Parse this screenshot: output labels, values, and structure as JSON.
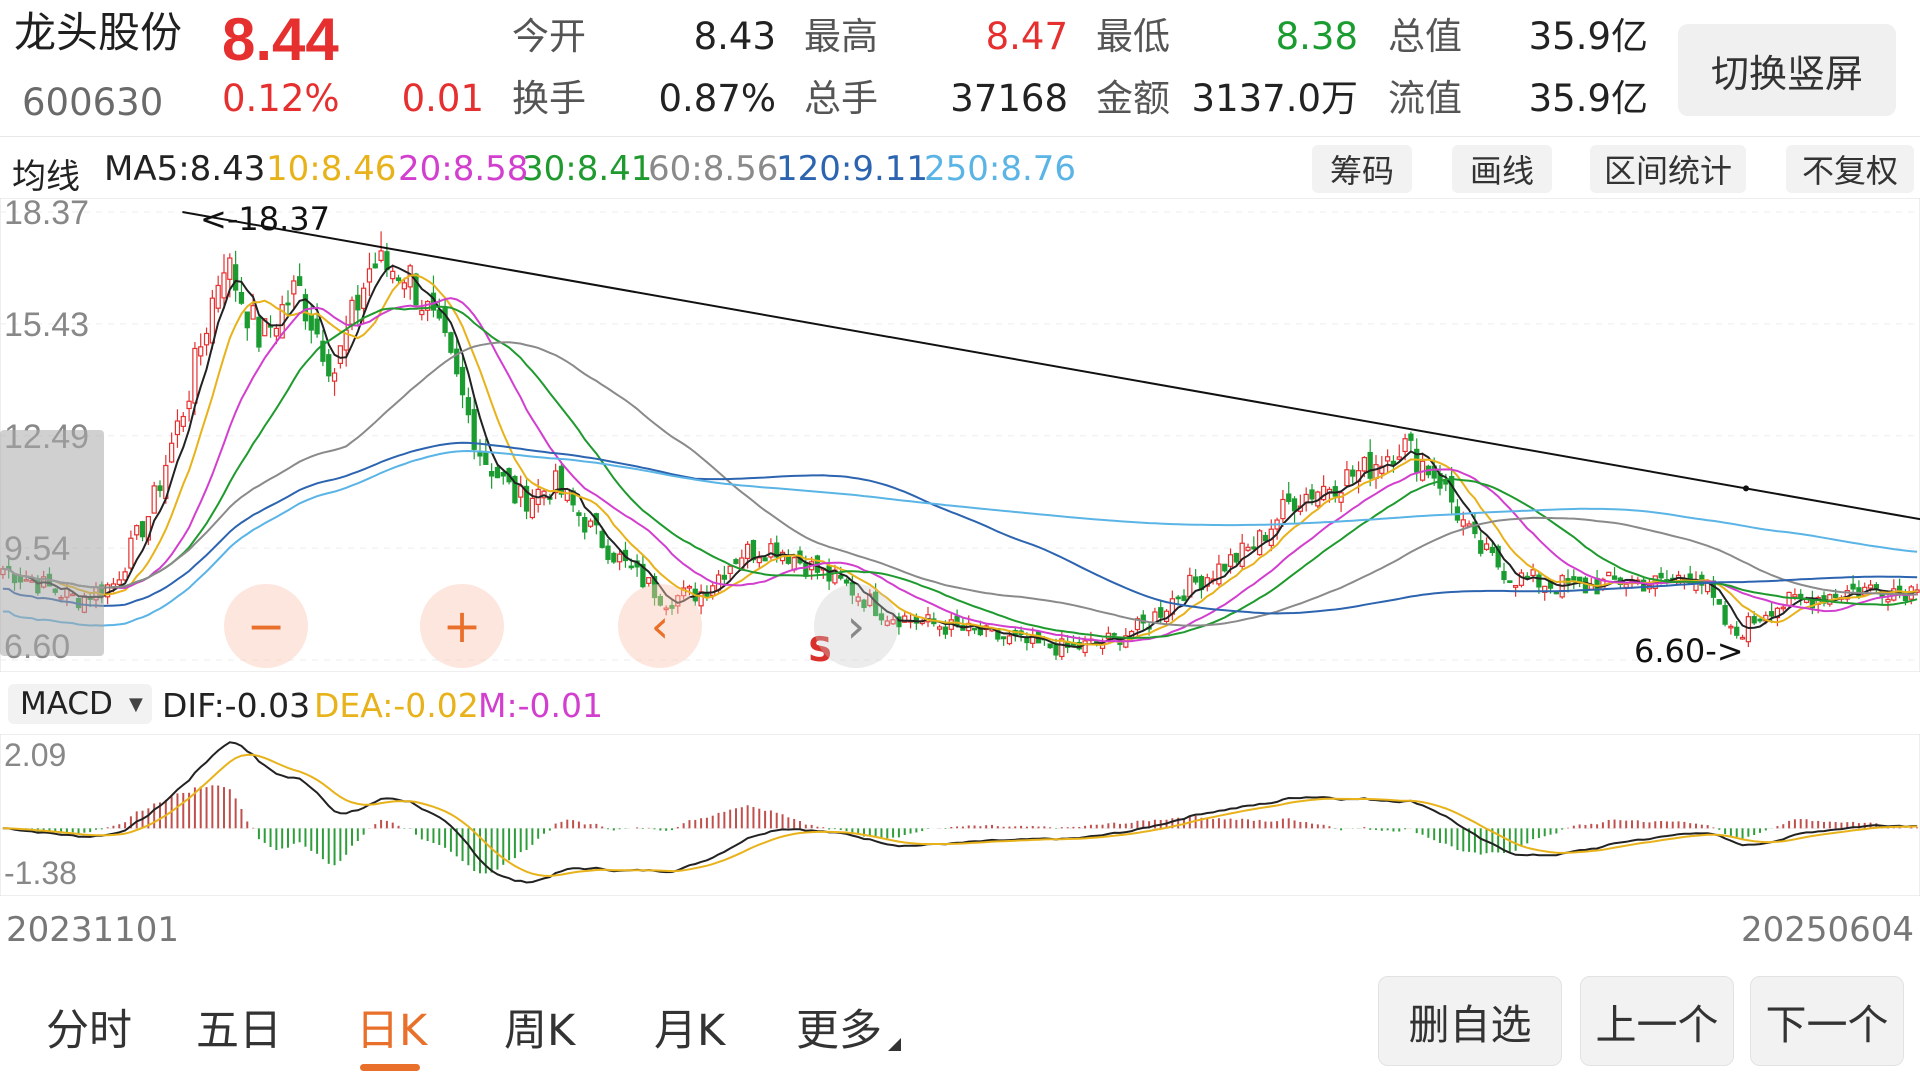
{
  "header": {
    "name": "龙头股份",
    "code": "600630",
    "price": "8.44",
    "change_pct": "0.12%",
    "change_amt": "0.01",
    "stats": [
      {
        "label": "今开",
        "value": "8.43",
        "color": "dark"
      },
      {
        "label": "最高",
        "value": "8.47",
        "color": "red"
      },
      {
        "label": "最低",
        "value": "8.38",
        "color": "green"
      },
      {
        "label": "总值",
        "value": "35.9亿",
        "color": "dark"
      },
      {
        "label": "换手",
        "value": "0.87%",
        "color": "dark"
      },
      {
        "label": "总手",
        "value": "37168",
        "color": "dark"
      },
      {
        "label": "金额",
        "value": "3137.0万",
        "color": "dark"
      },
      {
        "label": "流值",
        "value": "35.9亿",
        "color": "dark"
      }
    ],
    "switch_label": "切换竖屏"
  },
  "ma_row": {
    "title": "均线",
    "items": [
      {
        "text": "MA5:8.43",
        "color": "#222222"
      },
      {
        "text": "10:8.46",
        "color": "#e8b21a"
      },
      {
        "text": "20:8.58",
        "color": "#d23fcf"
      },
      {
        "text": "30:8.41",
        "color": "#1f9a2e"
      },
      {
        "text": "60:8.56",
        "color": "#8a8a8a"
      },
      {
        "text": "120:9.11",
        "color": "#2c64b0"
      },
      {
        "text": "250:8.76",
        "color": "#5ab4e6"
      }
    ],
    "tools": [
      "筹码",
      "画线",
      "区间统计",
      "不复权"
    ]
  },
  "kchart": {
    "y_labels": [
      "18.37",
      "15.43",
      "12.49",
      "9.54",
      "6.60"
    ],
    "high_mark": "<-18.37",
    "low_mark": "6.60->",
    "s_badge": "S",
    "controls": [
      "−",
      "+",
      "‹",
      "›"
    ]
  },
  "macd": {
    "selector": "MACD",
    "dif": "DIF:-0.03",
    "dea": "DEA:-0.02",
    "m": "M:-0.01",
    "y_labels": [
      "2.09",
      "-1.38"
    ]
  },
  "dates": {
    "start": "20231101",
    "end": "20250604"
  },
  "bottom": {
    "tabs": [
      "分时",
      "五日",
      "日K",
      "周K",
      "月K",
      "更多"
    ],
    "active_tab": 2,
    "buttons": [
      "删自选",
      "上一个",
      "下一个"
    ]
  },
  "chart_data": {
    "type": "candlestick",
    "x_range": [
      "20231101",
      "20250604"
    ],
    "ylim": [
      6.6,
      18.37
    ],
    "y_ticks": [
      18.37,
      15.43,
      12.49,
      9.54,
      6.6
    ],
    "close_path": [
      9.0,
      8.6,
      8.2,
      8.6,
      10.5,
      13.5,
      17.2,
      15.0,
      16.4,
      14.2,
      17.0,
      16.8,
      14.8,
      12.0,
      10.8,
      11.2,
      10.0,
      9.0,
      8.2,
      8.4,
      9.4,
      9.6,
      9.0,
      8.5,
      7.8,
      7.6,
      7.4,
      7.2,
      7.0,
      6.9,
      7.1,
      7.5,
      8.4,
      9.0,
      9.6,
      10.8,
      11.2,
      11.6,
      12.3,
      11.4,
      9.6,
      8.8,
      8.6,
      8.5,
      8.7,
      8.6,
      8.9,
      7.2,
      8.0,
      8.2,
      8.4,
      8.5,
      8.44
    ],
    "trendline": {
      "start": {
        "date_index": 0.095,
        "value": 18.37
      },
      "end": {
        "date_index": 1.0,
        "value": 10.3
      }
    },
    "macd_range": [
      -1.38,
      2.09
    ]
  }
}
